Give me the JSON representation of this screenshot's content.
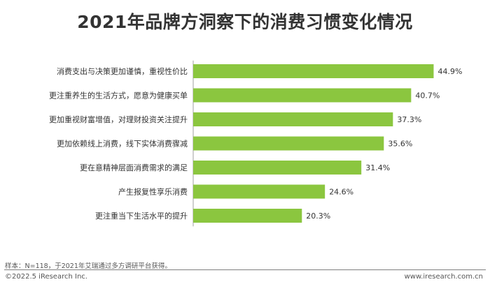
{
  "page": {
    "footnote": "样本：N=118，于2021年艾瑞通过多方调研平台获得。",
    "copyright": "©2022.5 iResearch Inc.",
    "website": "www.iresearch.com.cn"
  },
  "chart_data": {
    "type": "bar",
    "orientation": "horizontal",
    "title": "2021年品牌方洞察下的消费习惯变化情况",
    "categories": [
      "消费支出与决策更加谨慎，重视性价比",
      "更注重养生的生活方式，愿意为健康买单",
      "更加重视财富增值，对理财投资关注提升",
      "更加依赖线上消费，线下实体消费骤减",
      "更在意精神层面消费需求的满足",
      "产生报复性享乐消费",
      "更注重当下生活水平的提升"
    ],
    "values": [
      44.9,
      40.7,
      37.3,
      35.6,
      31.4,
      24.6,
      20.3
    ],
    "value_labels": [
      "44.9%",
      "40.7%",
      "37.3%",
      "35.6%",
      "31.4%",
      "24.6%",
      "20.3%"
    ],
    "unit": "%",
    "bar_color": "#8BC63F",
    "axis_color": "#9f9f9f",
    "grid": false,
    "legend": "none"
  }
}
